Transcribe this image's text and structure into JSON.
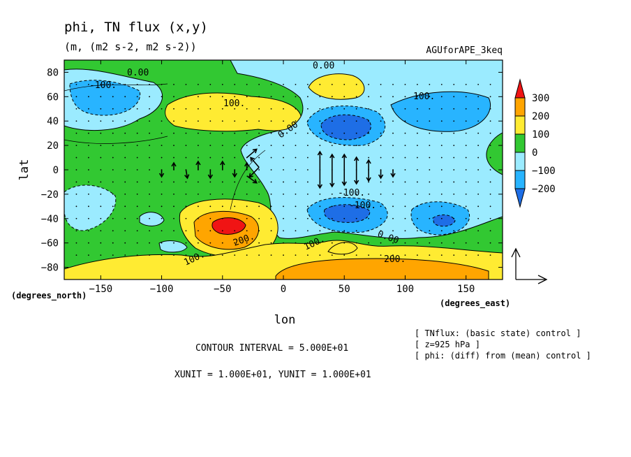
{
  "chart_data": {
    "type": "heatmap",
    "title": "phi, TN flux (x,y)",
    "subtitle": "(m, (m2 s-2, m2 s-2))",
    "experiment": "AGUforAPE_3keq",
    "xlabel": "lon",
    "ylabel": "lat",
    "xunit_label": "(degrees_east)",
    "yunit_label": "(degrees_north)",
    "xlim": [
      -180,
      180
    ],
    "ylim": [
      -90,
      90
    ],
    "xticks": [
      -150,
      -100,
      -50,
      0,
      50,
      100,
      150
    ],
    "yticks": [
      -80,
      -60,
      -40,
      -20,
      0,
      20,
      40,
      60,
      80
    ],
    "colorbar": {
      "labels": [
        "300",
        "200",
        "100",
        "0",
        "−100",
        "−200"
      ],
      "levels": [
        -300,
        -200,
        -100,
        0,
        100,
        200,
        300
      ],
      "colors": [
        "#1e6ee6",
        "#28b4ff",
        "#9bebff",
        "#32c832",
        "#ffeb32",
        "#ffa500",
        "#f01414"
      ]
    },
    "contour_labels": [
      "0.00",
      "0.00",
      "100.",
      "-100.",
      "100.",
      "0.00",
      "-100.",
      "200.",
      "-100.",
      "0.00",
      "100.",
      "100.",
      "200."
    ],
    "notes": [
      "CONTOUR INTERVAL = 5.000E+01",
      "XUNIT = 1.000E+01, YUNIT = 1.000E+01"
    ],
    "annotations": [
      "[ TNflux: (basic state) control ]",
      "[ z=925 hPa ]",
      "[ phi: (diff) from (mean) control ]"
    ],
    "field_features": [
      {
        "lon": -150,
        "lat": 55,
        "value": -120
      },
      {
        "lon": -45,
        "lat": 45,
        "value": 130
      },
      {
        "lon": 50,
        "lat": 70,
        "value": 110
      },
      {
        "lon": 50,
        "lat": 35,
        "value": -260
      },
      {
        "lon": -45,
        "lat": -43,
        "value": 330
      },
      {
        "lon": 50,
        "lat": -33,
        "value": -230
      },
      {
        "lon": 130,
        "lat": -42,
        "value": -210
      },
      {
        "lon": 70,
        "lat": -78,
        "value": 230
      },
      {
        "lon": -150,
        "lat": -35,
        "value": -80
      }
    ]
  }
}
